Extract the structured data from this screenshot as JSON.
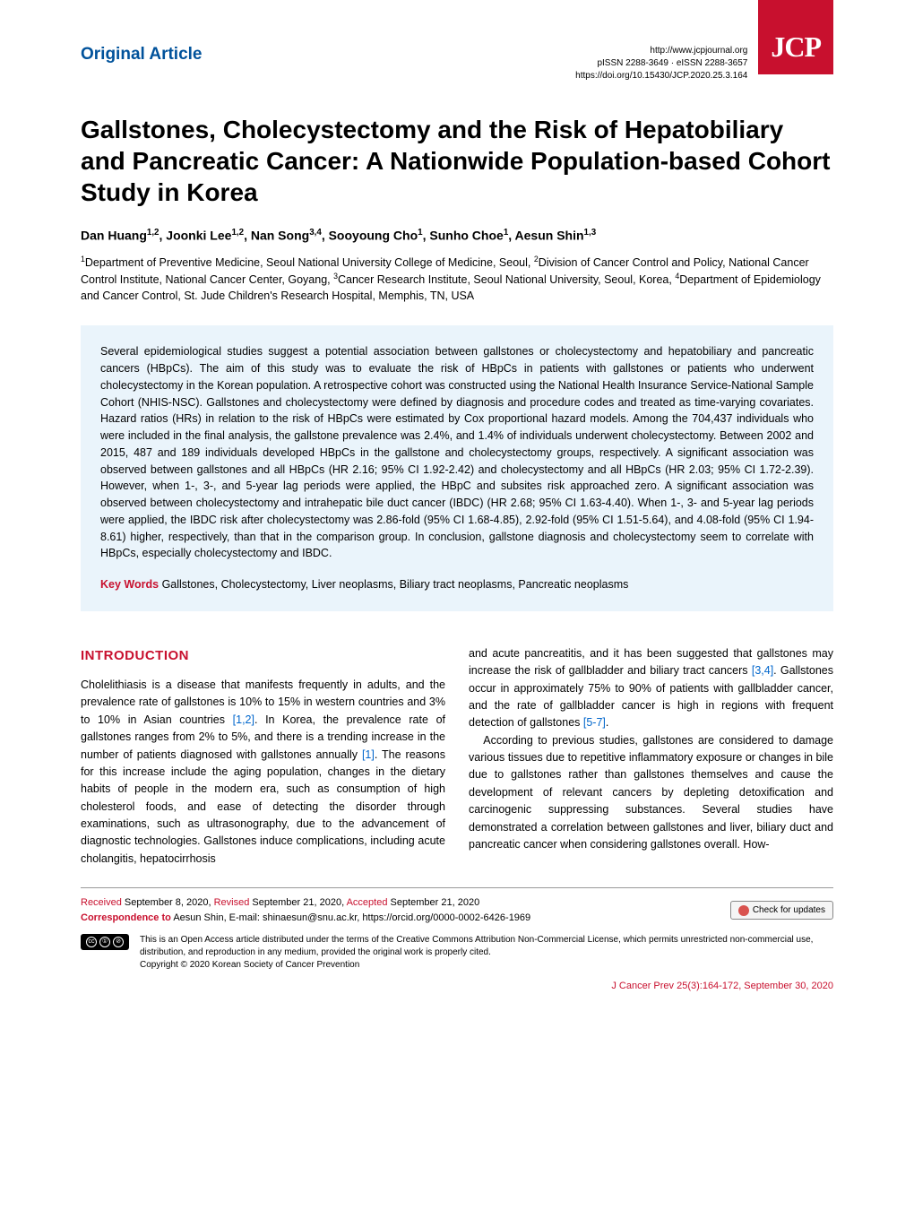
{
  "header": {
    "article_type": "Original Article",
    "url": "http://www.jcpjournal.org",
    "issn": "pISSN 2288-3649 · eISSN 2288-3657",
    "doi": "https://doi.org/10.15430/JCP.2020.25.3.164",
    "logo": "JCP"
  },
  "title": "Gallstones, Cholecystectomy and the Risk of Hepatobiliary and Pancreatic Cancer: A Nationwide Population-based Cohort Study in Korea",
  "authors_html": "Dan Huang<sup>1,2</sup>, Joonki Lee<sup>1,2</sup>, Nan Song<sup>3,4</sup>, Sooyoung Cho<sup>1</sup>, Sunho Choe<sup>1</sup>, Aesun Shin<sup>1,3</sup>",
  "affiliations_html": "<sup>1</sup>Department of Preventive Medicine, Seoul National University College of Medicine, Seoul, <sup>2</sup>Division of Cancer Control and Policy, National Cancer Control Institute, National Cancer Center, Goyang, <sup>3</sup>Cancer Research Institute, Seoul National University, Seoul, Korea, <sup>4</sup>Department of Epidemiology and Cancer Control, St. Jude Children's Research Hospital, Memphis, TN, USA",
  "abstract": "Several epidemiological studies suggest a potential association between gallstones or cholecystectomy and hepatobiliary and pancreatic cancers (HBpCs). The aim of this study was to evaluate the risk of HBpCs in patients with gallstones or patients who underwent cholecystectomy in the Korean population. A retrospective cohort was constructed using the National Health Insurance Service-National Sample Cohort (NHIS-NSC). Gallstones and cholecystectomy were defined by diagnosis and procedure codes and treated as time-varying covariates. Hazard ratios (HRs) in relation to the risk of HBpCs were estimated by Cox proportional hazard models. Among the 704,437 individuals who were included in the final analysis, the gallstone prevalence was 2.4%, and 1.4% of individuals underwent cholecystectomy. Between 2002 and 2015, 487 and 189 individuals developed HBpCs in the gallstone and cholecystectomy groups, respectively. A significant association was observed between gallstones and all HBpCs (HR 2.16; 95% CI 1.92-2.42) and cholecystectomy and all HBpCs (HR 2.03; 95% CI 1.72-2.39). However, when 1-, 3-, and 5-year lag periods were applied, the HBpC and subsites risk approached zero. A significant association was observed between cholecystectomy and intrahepatic bile duct cancer (IBDC) (HR 2.68; 95% CI 1.63-4.40). When 1-, 3- and 5-year lag periods were applied, the IBDC risk after cholecystectomy was 2.86-fold (95% CI 1.68-4.85), 2.92-fold (95% CI 1.51-5.64), and 4.08-fold (95% CI 1.94-8.61) higher, respectively, than that in the comparison group. In conclusion, gallstone diagnosis and cholecystectomy seem to correlate with HBpCs, especially cholecystectomy and IBDC.",
  "keywords_label": "Key Words",
  "keywords": "Gallstones, Cholecystectomy, Liver neoplasms, Biliary tract neoplasms, Pancreatic neoplasms",
  "intro_heading": "INTRODUCTION",
  "col1_html": "Cholelithiasis is a disease that manifests frequently in adults, and the prevalence rate of gallstones is 10% to 15% in western countries and 3% to 10% in Asian countries <span class=\"link\">[1,2]</span>. In Korea, the prevalence rate of gallstones ranges from 2% to 5%, and there is a trending increase in the number of patients diagnosed with gallstones annually <span class=\"link\">[1]</span>. The reasons for this increase include the aging population, changes in the dietary habits of people in the modern era, such as consumption of high cholesterol foods, and ease of detecting the disorder through examinations, such as ultrasonography, due to the advancement of diagnostic technologies. Gallstones induce complications, including acute cholangitis, hepatocirrhosis",
  "col2_html": "and acute pancreatitis, and it has been suggested that gallstones may increase the risk of gallbladder and biliary tract cancers <span class=\"link\">[3,4]</span>. Gallstones occur in approximately 75% to 90% of patients with gallbladder cancer, and the rate of gallbladder cancer is high in regions with frequent detection of gallstones <span class=\"link\">[5-7]</span>.<br>&nbsp;&nbsp;&nbsp;According to previous studies, gallstones are considered to damage various tissues due to repetitive inflammatory exposure or changes in bile due to gallstones rather than gallstones themselves and cause the development of relevant cancers by depleting detoxification and carcinogenic suppressing substances. Several studies have demonstrated a correlation between gallstones and liver, biliary duct and pancreatic cancer when considering gallstones overall. How-",
  "dates_html": "<span class=\"rc\">Received</span> September 8, 2020, <span class=\"rc\">Revised</span> September 21, 2020, <span class=\"rc\">Accepted</span> September 21, 2020",
  "correspondence_label": "Correspondence to",
  "correspondence": "Aesun Shin, E-mail: shinaesun@snu.ac.kr, https://orcid.org/0000-0002-6426-1969",
  "check_updates": "Check for updates",
  "license": "This is an Open Access article distributed under the terms of the Creative Commons Attribution Non-Commercial License, which permits unrestricted non-commercial use, distribution, and reproduction in any medium, provided the original work is properly cited.",
  "copyright": "Copyright © 2020 Korean Society of Cancer Prevention",
  "journal_footer": "J Cancer Prev 25(3):164-172, September 30, 2020"
}
